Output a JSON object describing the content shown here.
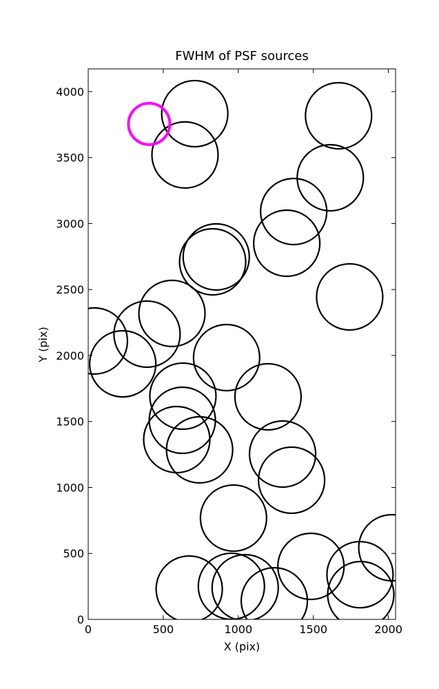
{
  "chart_data": {
    "type": "scatter",
    "title": "FWHM of PSF sources",
    "xlabel": "X (pix)",
    "ylabel": "Y (pix)",
    "xlim": [
      0,
      2048
    ],
    "ylim": [
      0,
      4172
    ],
    "xticks": [
      0,
      500,
      1000,
      1500,
      2000
    ],
    "yticks": [
      0,
      500,
      1000,
      1500,
      2000,
      2500,
      3000,
      3500,
      4000
    ],
    "series": [
      {
        "color": "#000000",
        "x": [
          710,
          645,
          1668,
          1613,
          1369,
          1323,
          853,
          829,
          1742,
          558,
          392,
          41,
          230,
          922,
          631,
          1198,
          627,
          590,
          742,
          1295,
          1355,
          968,
          2023,
          1484,
          1811,
          1816,
          673,
          954,
          1046,
          1240
        ],
        "values": [
          3833,
          3520,
          3817,
          3347,
          3091,
          2851,
          2747,
          2710,
          2444,
          2319,
          2162,
          2110,
          1937,
          1984,
          1692,
          1687,
          1509,
          1363,
          1285,
          1253,
          1055,
          768,
          543,
          402,
          339,
          188,
          230,
          251,
          240,
          141
        ]
      },
      {
        "color": "#ff00ff",
        "x": [
          406
        ],
        "values": [
          3755
        ]
      }
    ]
  }
}
